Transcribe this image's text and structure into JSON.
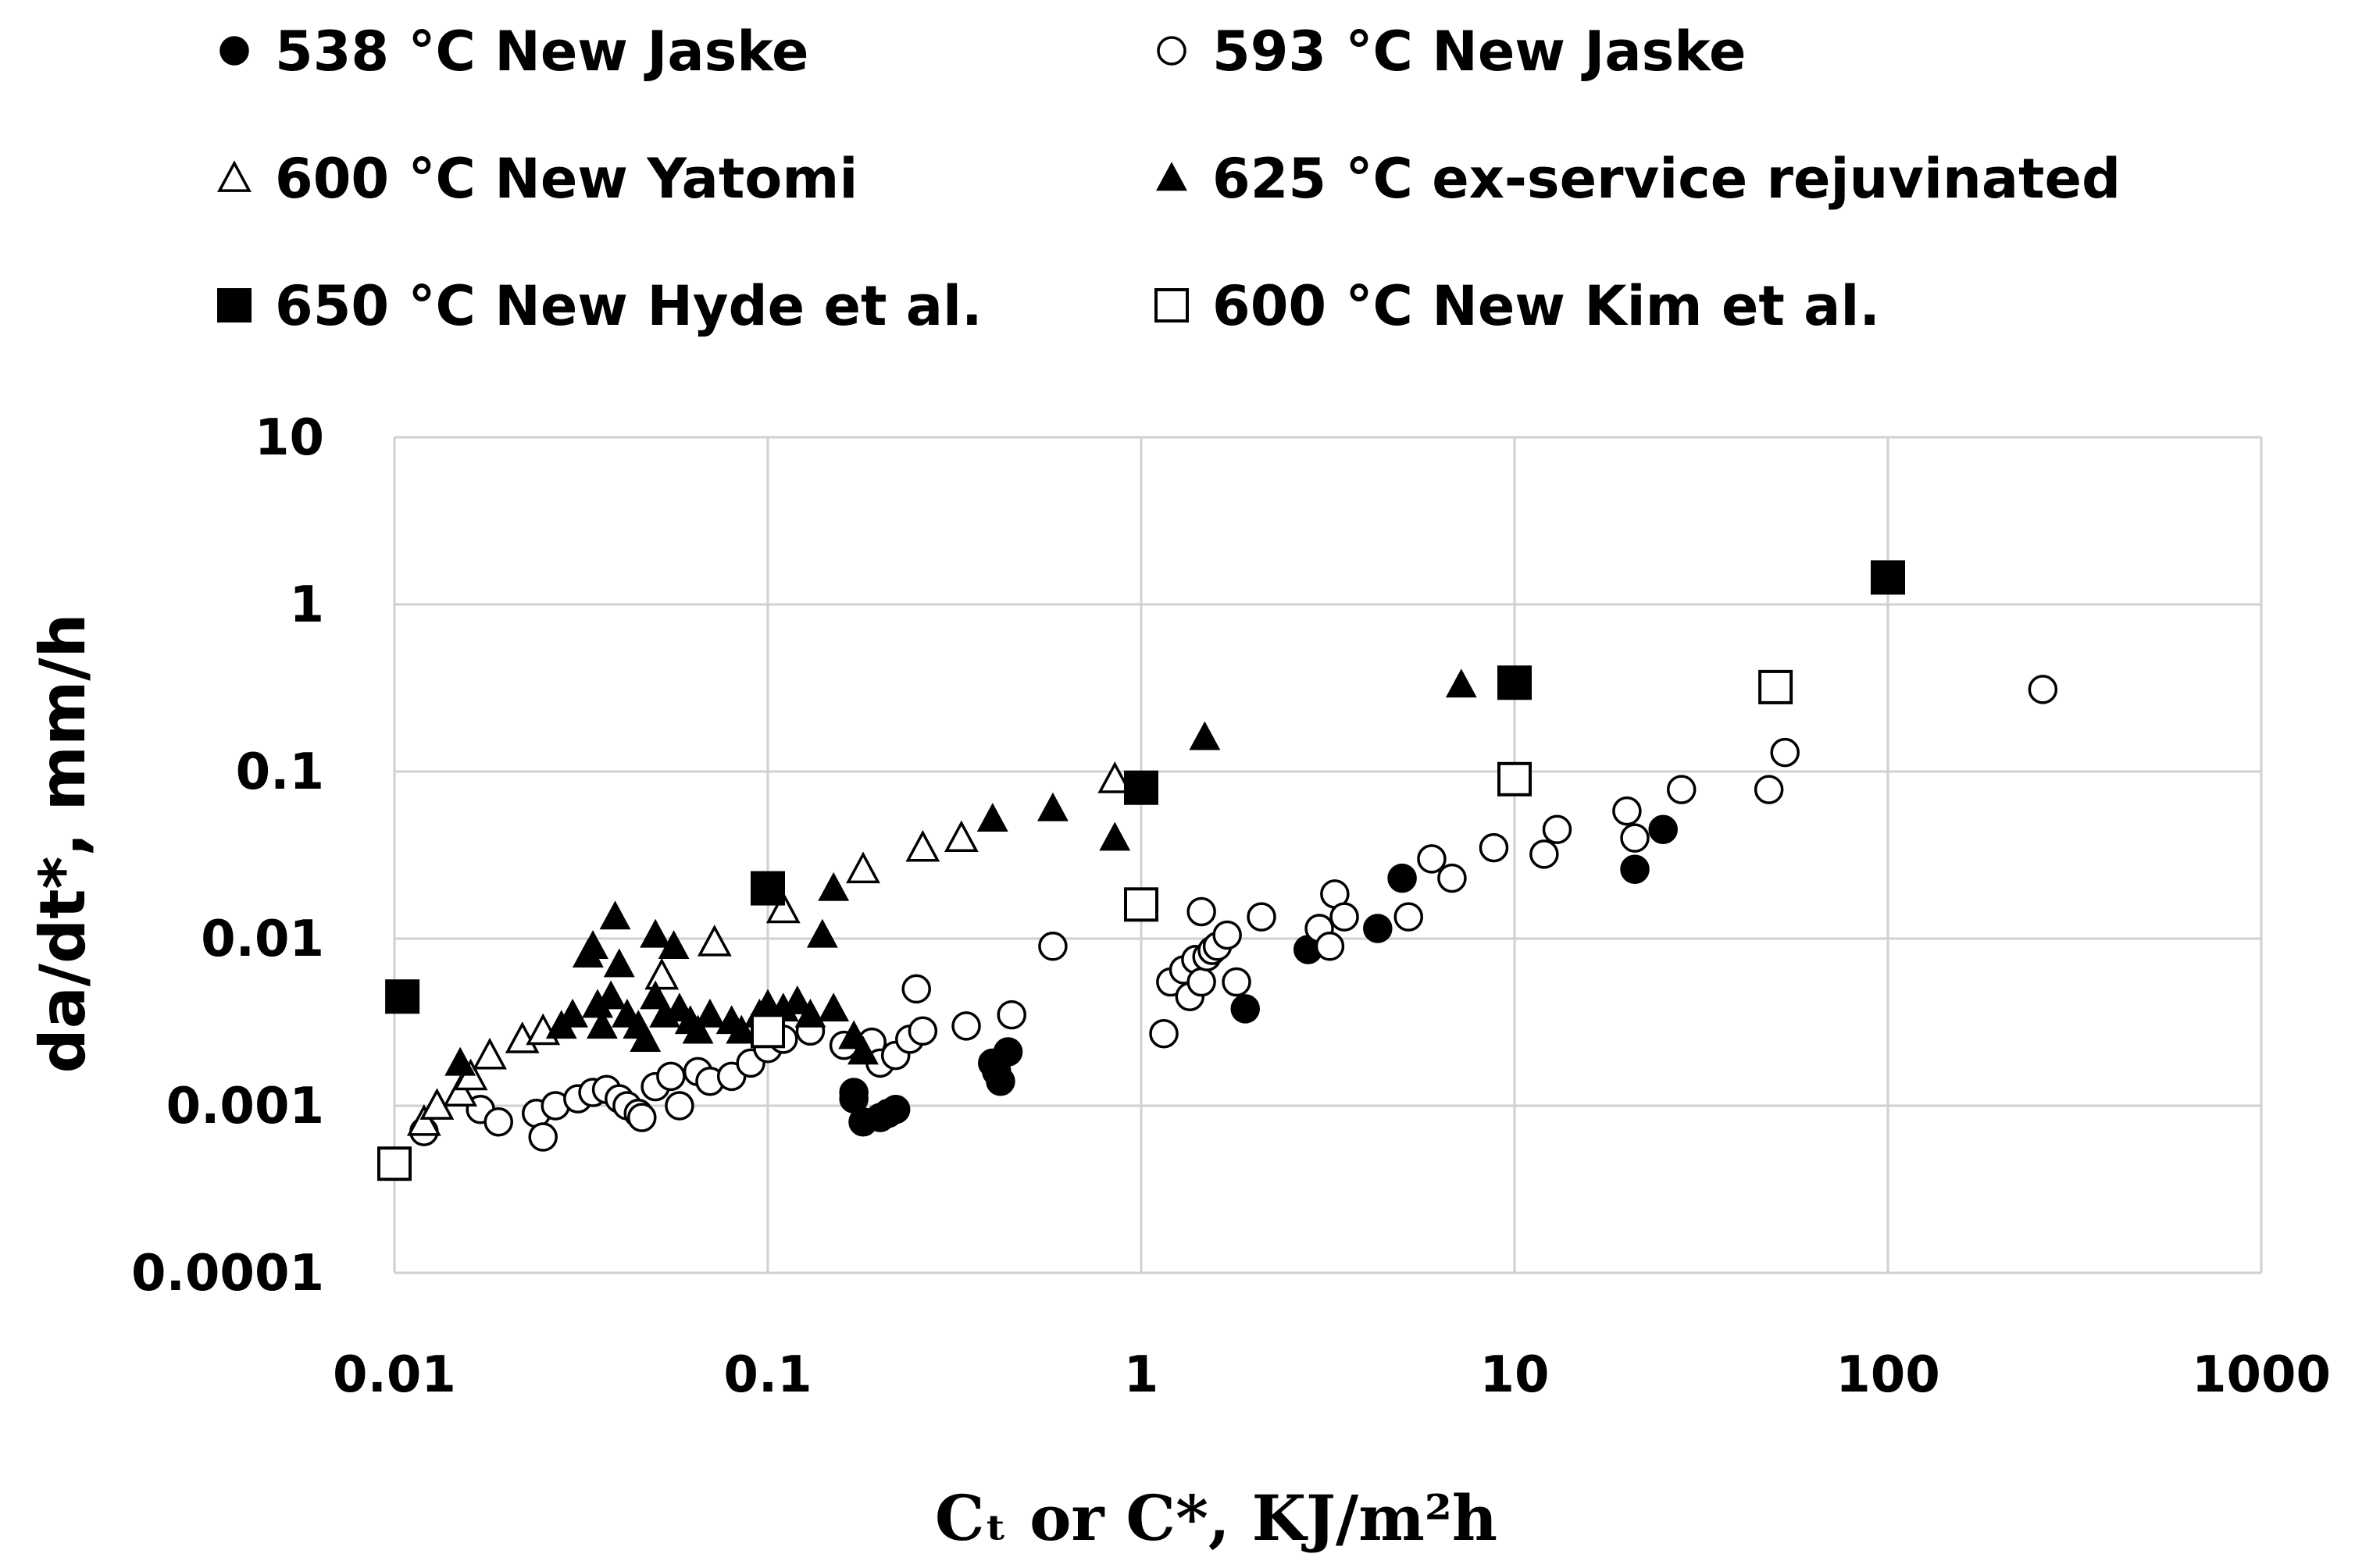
{
  "chart_data": {
    "type": "scatter",
    "title": "",
    "xlabel": "Cₜ or C*, KJ/m²h",
    "ylabel": "da/dt*, mm/h",
    "x_scale": "log",
    "y_scale": "log",
    "xlim": [
      0.01,
      1000
    ],
    "ylim": [
      0.0001,
      10
    ],
    "grid": true,
    "legend_position": "top",
    "x_tick_labels": [
      "0.01",
      "0.1",
      "1",
      "10",
      "100",
      "1000"
    ],
    "y_tick_labels": [
      "0.0001",
      "0.001",
      "0.01",
      "0.1",
      "1",
      "10"
    ],
    "series": [
      {
        "name": "538 °C New Jaske",
        "marker": "circle-filled",
        "points": [
          [
            0.17,
            0.0012
          ],
          [
            0.17,
            0.0011
          ],
          [
            0.18,
            0.0008
          ],
          [
            0.2,
            0.00085
          ],
          [
            0.21,
            0.0009
          ],
          [
            0.22,
            0.00095
          ],
          [
            0.4,
            0.0018
          ],
          [
            0.41,
            0.0016
          ],
          [
            0.42,
            0.0014
          ],
          [
            0.44,
            0.0021
          ],
          [
            1.9,
            0.0038
          ],
          [
            2.8,
            0.0086
          ],
          [
            4.3,
            0.0115
          ],
          [
            5.0,
            0.023
          ],
          [
            21,
            0.026
          ],
          [
            25,
            0.045
          ]
        ]
      },
      {
        "name": "593 °C New Jaske",
        "marker": "circle-open",
        "points": [
          [
            0.012,
            0.0007
          ],
          [
            0.017,
            0.00095
          ],
          [
            0.019,
            0.0008
          ],
          [
            0.024,
            0.0009
          ],
          [
            0.025,
            0.00065
          ],
          [
            0.027,
            0.001
          ],
          [
            0.031,
            0.0011
          ],
          [
            0.034,
            0.0012
          ],
          [
            0.037,
            0.00125
          ],
          [
            0.04,
            0.0011
          ],
          [
            0.042,
            0.001
          ],
          [
            0.045,
            0.0009
          ],
          [
            0.046,
            0.00085
          ],
          [
            0.05,
            0.0013
          ],
          [
            0.055,
            0.0015
          ],
          [
            0.058,
            0.001
          ],
          [
            0.065,
            0.0016
          ],
          [
            0.07,
            0.0014
          ],
          [
            0.08,
            0.0015
          ],
          [
            0.09,
            0.0018
          ],
          [
            0.1,
            0.0022
          ],
          [
            0.11,
            0.0025
          ],
          [
            0.13,
            0.0028
          ],
          [
            0.16,
            0.0023
          ],
          [
            0.19,
            0.0024
          ],
          [
            0.2,
            0.0018
          ],
          [
            0.22,
            0.002
          ],
          [
            0.24,
            0.0025
          ],
          [
            0.26,
            0.0028
          ],
          [
            0.25,
            0.005
          ],
          [
            0.34,
            0.003
          ],
          [
            0.45,
            0.0035
          ],
          [
            0.58,
            0.009
          ],
          [
            1.15,
            0.0027
          ],
          [
            1.2,
            0.0055
          ],
          [
            1.3,
            0.0065
          ],
          [
            1.35,
            0.0045
          ],
          [
            1.4,
            0.0075
          ],
          [
            1.45,
            0.0055
          ],
          [
            1.45,
            0.0145
          ],
          [
            1.5,
            0.0078
          ],
          [
            1.55,
            0.0085
          ],
          [
            1.6,
            0.009
          ],
          [
            1.7,
            0.0105
          ],
          [
            1.8,
            0.0055
          ],
          [
            2.1,
            0.0135
          ],
          [
            3.0,
            0.0115
          ],
          [
            3.2,
            0.009
          ],
          [
            3.3,
            0.0185
          ],
          [
            3.5,
            0.0135
          ],
          [
            5.2,
            0.0135
          ],
          [
            6.0,
            0.03
          ],
          [
            6.8,
            0.023
          ],
          [
            8.8,
            0.035
          ],
          [
            12,
            0.032
          ],
          [
            13,
            0.045
          ],
          [
            20,
            0.058
          ],
          [
            21,
            0.04
          ],
          [
            28,
            0.078
          ],
          [
            48,
            0.078
          ],
          [
            53,
            0.13
          ],
          [
            260,
            0.31
          ]
        ]
      },
      {
        "name": "600 °C New Yatomi",
        "marker": "triangle-open",
        "points": [
          [
            0.012,
            0.0008
          ],
          [
            0.013,
            0.001
          ],
          [
            0.015,
            0.0012
          ],
          [
            0.016,
            0.0015
          ],
          [
            0.018,
            0.002
          ],
          [
            0.022,
            0.0025
          ],
          [
            0.025,
            0.0028
          ],
          [
            0.052,
            0.006
          ],
          [
            0.072,
            0.0095
          ],
          [
            0.11,
            0.015
          ],
          [
            0.18,
            0.026
          ],
          [
            0.26,
            0.035
          ],
          [
            0.33,
            0.04
          ],
          [
            0.85,
            0.09
          ]
        ]
      },
      {
        "name": "625 °C ex-service rejuvinated",
        "marker": "triangle-filled",
        "points": [
          [
            0.015,
            0.0018
          ],
          [
            0.028,
            0.003
          ],
          [
            0.03,
            0.0035
          ],
          [
            0.033,
            0.008
          ],
          [
            0.034,
            0.009
          ],
          [
            0.035,
            0.004
          ],
          [
            0.036,
            0.003
          ],
          [
            0.038,
            0.0045
          ],
          [
            0.039,
            0.0135
          ],
          [
            0.04,
            0.007
          ],
          [
            0.042,
            0.0035
          ],
          [
            0.045,
            0.003
          ],
          [
            0.047,
            0.0025
          ],
          [
            0.05,
            0.0105
          ],
          [
            0.05,
            0.0045
          ],
          [
            0.053,
            0.0035
          ],
          [
            0.056,
            0.009
          ],
          [
            0.058,
            0.0038
          ],
          [
            0.062,
            0.0032
          ],
          [
            0.065,
            0.0028
          ],
          [
            0.07,
            0.0035
          ],
          [
            0.08,
            0.0032
          ],
          [
            0.085,
            0.0028
          ],
          [
            0.095,
            0.0035
          ],
          [
            0.1,
            0.004
          ],
          [
            0.11,
            0.0038
          ],
          [
            0.12,
            0.0042
          ],
          [
            0.13,
            0.0035
          ],
          [
            0.14,
            0.0105
          ],
          [
            0.15,
            0.0038
          ],
          [
            0.15,
            0.02
          ],
          [
            0.17,
            0.0026
          ],
          [
            0.18,
            0.0021
          ],
          [
            0.4,
            0.052
          ],
          [
            0.58,
            0.06
          ],
          [
            0.85,
            0.04
          ],
          [
            1.48,
            0.16
          ],
          [
            7.2,
            0.33
          ]
        ]
      },
      {
        "name": "650 °C New Hyde et al.",
        "marker": "square-filled",
        "points": [
          [
            0.0105,
            0.0045
          ],
          [
            0.1,
            0.02
          ],
          [
            1.0,
            0.08
          ],
          [
            10.0,
            0.34
          ],
          [
            100,
            1.45
          ]
        ]
      },
      {
        "name": "600 °C New Kim et al.",
        "marker": "square-open",
        "points": [
          [
            0.01,
            0.00045
          ],
          [
            0.1,
            0.0028
          ],
          [
            1.0,
            0.016
          ],
          [
            10.0,
            0.09
          ],
          [
            50,
            0.32
          ]
        ]
      }
    ]
  }
}
